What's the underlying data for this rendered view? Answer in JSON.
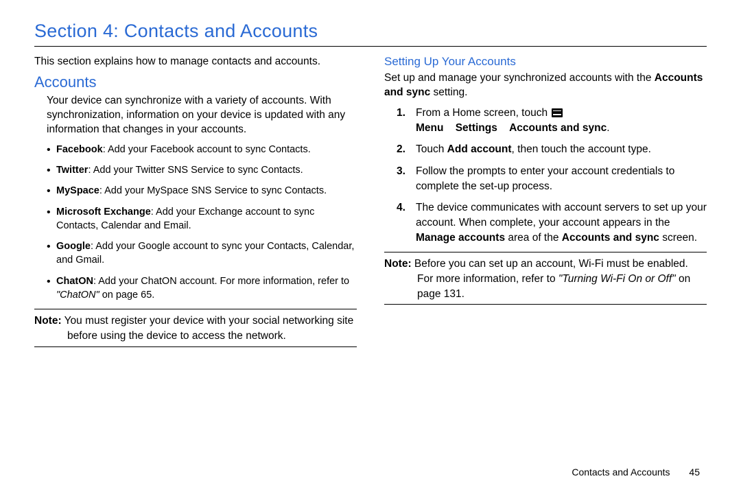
{
  "colors": {
    "heading": "#2a6ad4",
    "text": "#000000",
    "background": "#ffffff",
    "rule": "#000000"
  },
  "typography": {
    "title_fontsize": 27,
    "h2_fontsize": 22,
    "h3_fontsize": 17,
    "body_fontsize": 15.5,
    "bullet_fontsize": 14.5,
    "footer_fontsize": 14
  },
  "title": "Section 4: Contacts and Accounts",
  "left": {
    "intro": "This section explains how to manage contacts and accounts.",
    "heading": "Accounts",
    "para1": "Your device can synchronize with a variety of accounts. With synchronization, information on your device is updated with any information that changes in your accounts.",
    "bullets": [
      {
        "bold": "Facebook",
        "text": ": Add your Facebook account to sync Contacts."
      },
      {
        "bold": "Twitter",
        "text": ": Add your Twitter SNS Service to sync Contacts."
      },
      {
        "bold": "MySpace",
        "text": ": Add your MySpace SNS Service to sync Contacts."
      },
      {
        "bold": "Microsoft Exchange",
        "text": ": Add your Exchange account to sync Contacts, Calendar and Email."
      },
      {
        "bold": "Google",
        "text": ": Add your Google account to sync your Contacts, Calendar, and Gmail."
      },
      {
        "bold": "ChatON",
        "text": ": Add your ChatON account. For more information, refer to ",
        "ref": "\"ChatON\" ",
        "ref_tail": " on page 65."
      }
    ],
    "note_label": "Note:",
    "note_text": " You must register your device with your social networking site before using the device to access the network."
  },
  "right": {
    "heading": "Setting Up Your Accounts",
    "para1_a": "Set up and manage your synchronized accounts with the ",
    "para1_bold": "Accounts and sync",
    "para1_b": " setting.",
    "steps": {
      "s1_a": "From a Home screen, touch ",
      "s1_b": " Menu",
      "s1_arrow1": " ",
      "s1_c": "Settings",
      "s1_arrow2": " ",
      "s1_d": "Accounts and sync",
      "s1_e": ".",
      "s2_a": "Touch ",
      "s2_b": "Add account",
      "s2_c": ", then touch the account type.",
      "s3": "Follow the prompts to enter your account credentials to complete the set-up process.",
      "s4_a": "The device communicates with account servers to set up your account. When complete, your account appears in the ",
      "s4_b": "Manage accounts",
      "s4_c": " area of the ",
      "s4_d": "Accounts and sync",
      "s4_e": " screen."
    },
    "note_label": "Note:",
    "note_a": " Before you can set up an account, Wi-Fi must be enabled. For more information, refer to ",
    "note_ref": "\"Turning Wi-Fi On or Off\" ",
    "note_b": " on page 131."
  },
  "footer": {
    "text": "Contacts and Accounts",
    "page": "45"
  }
}
